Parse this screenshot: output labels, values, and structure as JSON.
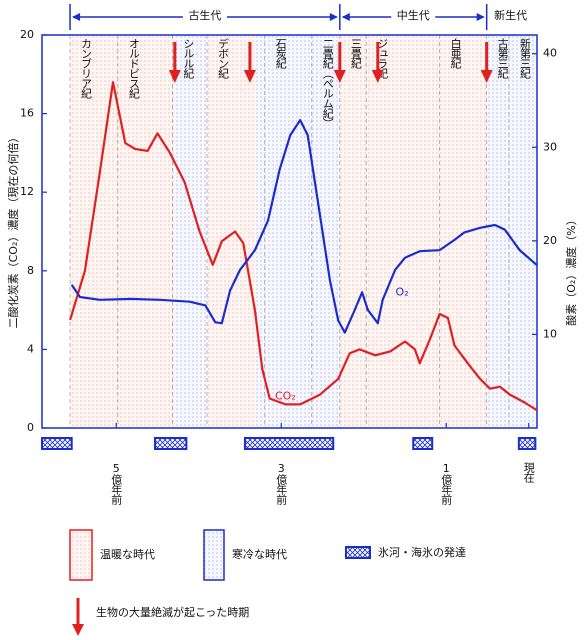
{
  "chart_data": {
    "type": "line",
    "y_label": "二酸化炭素（CO₂）濃度（現在の何倍）",
    "y2_label": "酸素（O₂）濃度（%）",
    "xlim": [
      5.9,
      -0.1
    ],
    "xticks": [
      {
        "value": 5,
        "label": "5億年前"
      },
      {
        "value": 3,
        "label": "3億年前"
      },
      {
        "value": 1,
        "label": "1億年前"
      },
      {
        "value": 0,
        "label": "現在"
      }
    ],
    "ylim": [
      0,
      20
    ],
    "yticks": [
      0,
      4,
      8,
      12,
      16,
      20
    ],
    "y2lim": [
      0,
      42
    ],
    "y2ticks": [
      10,
      20,
      30,
      40
    ],
    "series": [
      {
        "name": "CO₂",
        "color": "#e02020",
        "x": [
          5.56,
          5.38,
          5.2,
          5.04,
          4.89,
          4.77,
          4.62,
          4.5,
          4.35,
          4.17,
          3.99,
          3.83,
          3.72,
          3.56,
          3.46,
          3.32,
          3.23,
          3.14,
          2.95,
          2.77,
          2.53,
          2.31,
          2.17,
          2.05,
          1.86,
          1.68,
          1.5,
          1.38,
          1.32,
          1.2,
          1.08,
          0.98,
          0.9,
          0.74,
          0.59,
          0.47,
          0.35,
          0.23,
          0.05,
          -0.1
        ],
        "values": [
          5.5,
          8,
          13,
          17.6,
          14.5,
          14.2,
          14.1,
          15,
          14,
          12.5,
          10,
          8.3,
          9.5,
          10,
          9.4,
          6,
          3,
          1.5,
          1.2,
          1.2,
          1.7,
          2.5,
          3.8,
          4,
          3.7,
          3.9,
          4.4,
          4,
          3.3,
          4.5,
          5.8,
          5.6,
          4.2,
          3.3,
          2.5,
          2,
          2.1,
          1.7,
          1.3,
          0.9
        ]
      },
      {
        "name": "O₂",
        "color": "#1a2ecc",
        "axis": "y2",
        "x": [
          5.54,
          5.44,
          5.2,
          4.83,
          4.47,
          4.11,
          3.92,
          3.8,
          3.72,
          3.62,
          3.5,
          3.32,
          3.16,
          3.02,
          2.89,
          2.77,
          2.68,
          2.56,
          2.41,
          2.31,
          2.23,
          2.11,
          2.02,
          1.95,
          1.83,
          1.77,
          1.62,
          1.5,
          1.32,
          1.08,
          0.9,
          0.78,
          0.59,
          0.41,
          0.29,
          0.11,
          -0.1
        ],
        "values": [
          15.3,
          14,
          13.7,
          13.8,
          13.7,
          13.5,
          13.1,
          11.3,
          11.2,
          14.7,
          16.9,
          19,
          22.2,
          27.6,
          31.3,
          32.9,
          31.3,
          24.4,
          15.8,
          11.5,
          10.2,
          12.6,
          14.5,
          12.6,
          11.2,
          13.7,
          16.9,
          18.2,
          18.9,
          19,
          20.1,
          20.9,
          21.4,
          21.7,
          21.2,
          19,
          17.4
        ]
      }
    ],
    "eras": [
      {
        "name": "古生代",
        "start": 5.56,
        "end": 2.29
      },
      {
        "name": "中生代",
        "start": 2.29,
        "end": 0.51
      },
      {
        "name": "新生代",
        "start": 0.51,
        "end": -0.1
      }
    ],
    "periods": [
      {
        "name": "カンブリア紀",
        "start": 5.56,
        "end": 4.98
      },
      {
        "name": "オルドビス紀",
        "start": 4.98,
        "end": 4.32
      },
      {
        "name": "シルル紀",
        "start": 4.32,
        "end": 3.9
      },
      {
        "name": "デボン紀",
        "start": 3.9,
        "end": 3.2
      },
      {
        "name": "石炭紀",
        "start": 3.2,
        "end": 2.63
      },
      {
        "name": "二畳紀（ペルム紀）",
        "start": 2.63,
        "end": 2.29
      },
      {
        "name": "三畳紀",
        "start": 2.29,
        "end": 1.97
      },
      {
        "name": "ジュラ紀",
        "start": 1.97,
        "end": 1.08
      },
      {
        "name": "白亜紀",
        "start": 1.08,
        "end": 0.51
      },
      {
        "name": "古第三紀",
        "start": 0.51,
        "end": 0.24
      },
      {
        "name": "新第三紀",
        "start": 0.24,
        "end": -0.1
      }
    ],
    "warm_periods": [
      [
        5.56,
        4.3
      ],
      [
        3.9,
        3.3
      ],
      [
        2.29,
        0.51
      ]
    ],
    "cold_periods": [
      [
        4.3,
        3.9
      ],
      [
        3.3,
        2.29
      ],
      [
        0.51,
        -0.1
      ]
    ],
    "glaciations": [
      [
        5.9,
        5.54
      ],
      [
        4.53,
        4.15
      ],
      [
        3.44,
        2.37
      ],
      [
        1.4,
        1.17
      ],
      [
        0.12,
        -0.08
      ]
    ],
    "extinctions": [
      4.29,
      3.38,
      2.29,
      1.83,
      0.51
    ],
    "legend": {
      "warm": "温暖な時代",
      "cold": "寒冷な時代",
      "glacier": "氷河・海氷の発達",
      "extinction": "生物の大量絶滅が起こった時期"
    }
  }
}
